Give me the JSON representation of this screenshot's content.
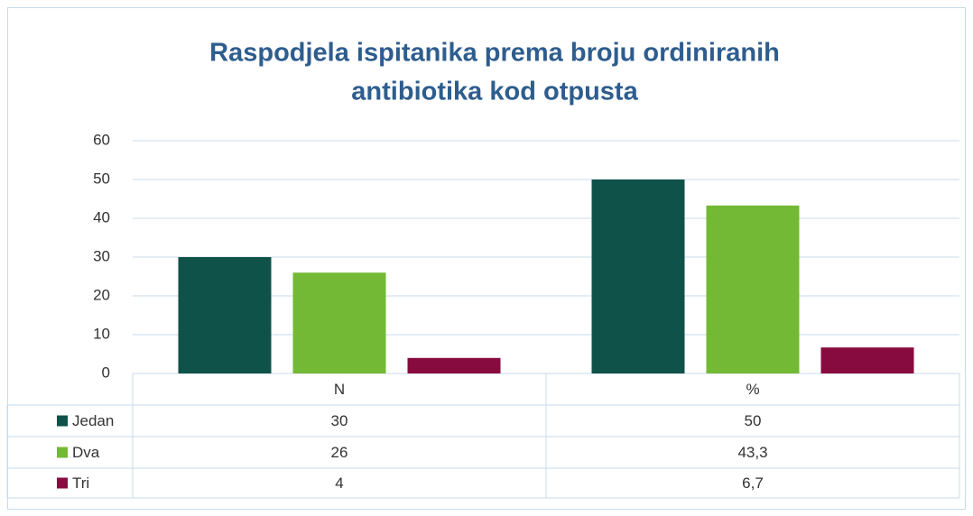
{
  "chart_data": {
    "type": "bar",
    "title": [
      "Raspodjela ispitanika prema broju ordiniranih",
      "antibiotika kod otpusta"
    ],
    "categories": [
      "N",
      "%"
    ],
    "series": [
      {
        "name": "Jedan",
        "color": "#0f5249",
        "values": [
          30,
          50
        ]
      },
      {
        "name": "Dva",
        "color": "#74b936",
        "values": [
          26,
          43.3
        ],
        "value_labels": [
          "26",
          "43,3"
        ]
      },
      {
        "name": "Tri",
        "color": "#870b3e",
        "values": [
          4,
          6.7
        ],
        "value_labels": [
          "4",
          "6,7"
        ]
      }
    ],
    "ylim": [
      0,
      60
    ],
    "yticks": [
      0,
      10,
      20,
      30,
      40,
      50,
      60
    ],
    "grid": true,
    "data_table": true
  }
}
